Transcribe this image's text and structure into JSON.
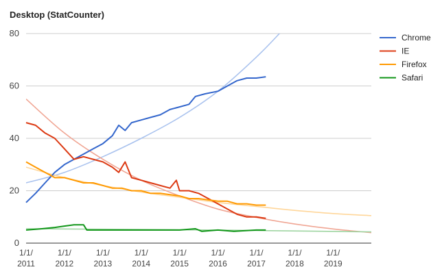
{
  "chart_data": {
    "type": "line",
    "title": "Desktop (StatCounter)",
    "xlabel": "",
    "ylabel": "",
    "ylim": [
      0,
      80
    ],
    "xlim": [
      "2011-01-01",
      "2019-12-31"
    ],
    "yticks": [
      "0",
      "20",
      "40",
      "60",
      "80"
    ],
    "xticks": [
      {
        "date": "2011-01-01",
        "line1": "1/1/",
        "line2": "2011"
      },
      {
        "date": "2012-01-01",
        "line1": "1/1/",
        "line2": "2012"
      },
      {
        "date": "2013-01-01",
        "line1": "1/1/",
        "line2": "2013"
      },
      {
        "date": "2014-01-01",
        "line1": "1/1/",
        "line2": "2014"
      },
      {
        "date": "2015-01-01",
        "line1": "1/1/",
        "line2": "2015"
      },
      {
        "date": "2016-01-01",
        "line1": "1/1/",
        "line2": "2016"
      },
      {
        "date": "2017-01-01",
        "line1": "1/1/",
        "line2": "2017"
      },
      {
        "date": "2018-01-01",
        "line1": "1/1/",
        "line2": "2018"
      },
      {
        "date": "2019-01-01",
        "line1": "1/1/",
        "line2": "2019"
      }
    ],
    "grid": "horizontal",
    "legend_position": "right",
    "series": [
      {
        "name": "Chrome",
        "color": "#3366cc",
        "trend_color": "#a9c2ee",
        "points": [
          [
            "2011-01-01",
            15.5
          ],
          [
            "2011-04-01",
            19
          ],
          [
            "2011-07-01",
            23
          ],
          [
            "2011-10-01",
            27
          ],
          [
            "2012-01-01",
            30
          ],
          [
            "2012-04-01",
            32
          ],
          [
            "2012-07-01",
            34
          ],
          [
            "2012-10-01",
            36
          ],
          [
            "2013-01-01",
            38
          ],
          [
            "2013-04-01",
            41
          ],
          [
            "2013-06-01",
            45
          ],
          [
            "2013-08-01",
            43
          ],
          [
            "2013-10-01",
            46
          ],
          [
            "2014-01-01",
            47
          ],
          [
            "2014-04-01",
            48
          ],
          [
            "2014-07-01",
            49
          ],
          [
            "2014-10-01",
            51
          ],
          [
            "2015-01-01",
            52
          ],
          [
            "2015-04-01",
            53
          ],
          [
            "2015-06-01",
            56
          ],
          [
            "2015-09-01",
            57
          ],
          [
            "2016-01-01",
            58
          ],
          [
            "2016-04-01",
            60
          ],
          [
            "2016-07-01",
            62
          ],
          [
            "2016-10-01",
            63
          ],
          [
            "2017-01-01",
            63
          ],
          [
            "2017-04-01",
            63.5
          ]
        ],
        "trend": [
          [
            "2011-01-01",
            23
          ],
          [
            "2012-01-01",
            27
          ],
          [
            "2013-01-01",
            33
          ],
          [
            "2014-01-01",
            40
          ],
          [
            "2015-01-01",
            48
          ],
          [
            "2016-01-01",
            58
          ],
          [
            "2017-01-01",
            71
          ],
          [
            "2017-09-01",
            81
          ]
        ]
      },
      {
        "name": "IE",
        "color": "#dc3912",
        "trend_color": "#f0a593",
        "points": [
          [
            "2011-01-01",
            46
          ],
          [
            "2011-04-01",
            45
          ],
          [
            "2011-07-01",
            42
          ],
          [
            "2011-10-01",
            40
          ],
          [
            "2012-01-01",
            36
          ],
          [
            "2012-04-01",
            32
          ],
          [
            "2012-07-01",
            33
          ],
          [
            "2012-10-01",
            32
          ],
          [
            "2013-01-01",
            31
          ],
          [
            "2013-04-01",
            29
          ],
          [
            "2013-06-01",
            27
          ],
          [
            "2013-08-01",
            31
          ],
          [
            "2013-10-01",
            25
          ],
          [
            "2014-01-01",
            24
          ],
          [
            "2014-04-01",
            23
          ],
          [
            "2014-07-01",
            22
          ],
          [
            "2014-10-01",
            21
          ],
          [
            "2014-12-01",
            24
          ],
          [
            "2015-01-01",
            20
          ],
          [
            "2015-04-01",
            20
          ],
          [
            "2015-07-01",
            19
          ],
          [
            "2016-01-01",
            15
          ],
          [
            "2016-04-01",
            13
          ],
          [
            "2016-07-01",
            11
          ],
          [
            "2016-10-01",
            10
          ],
          [
            "2017-01-01",
            10
          ],
          [
            "2017-04-01",
            9.5
          ]
        ],
        "trend": [
          [
            "2011-01-01",
            55
          ],
          [
            "2012-01-01",
            42
          ],
          [
            "2013-01-01",
            32
          ],
          [
            "2014-01-01",
            24
          ],
          [
            "2015-01-01",
            18
          ],
          [
            "2016-01-01",
            13
          ],
          [
            "2017-01-01",
            9.8
          ],
          [
            "2018-01-01",
            7.3
          ],
          [
            "2019-01-01",
            5.4
          ],
          [
            "2019-12-31",
            4
          ]
        ]
      },
      {
        "name": "Firefox",
        "color": "#ff9900",
        "trend_color": "#ffd699",
        "points": [
          [
            "2011-01-01",
            31
          ],
          [
            "2011-04-01",
            29
          ],
          [
            "2011-07-01",
            27
          ],
          [
            "2011-10-01",
            25
          ],
          [
            "2012-01-01",
            25
          ],
          [
            "2012-04-01",
            24
          ],
          [
            "2012-07-01",
            23
          ],
          [
            "2012-10-01",
            23
          ],
          [
            "2013-01-01",
            22
          ],
          [
            "2013-04-01",
            21
          ],
          [
            "2013-07-01",
            21
          ],
          [
            "2013-10-01",
            20
          ],
          [
            "2014-01-01",
            20
          ],
          [
            "2014-04-01",
            19
          ],
          [
            "2014-07-01",
            19
          ],
          [
            "2014-10-01",
            18.5
          ],
          [
            "2015-01-01",
            18
          ],
          [
            "2015-04-01",
            17
          ],
          [
            "2015-07-01",
            17
          ],
          [
            "2016-01-01",
            16
          ],
          [
            "2016-04-01",
            16
          ],
          [
            "2016-07-01",
            15
          ],
          [
            "2016-10-01",
            15
          ],
          [
            "2017-01-01",
            14.5
          ],
          [
            "2017-04-01",
            14.5
          ]
        ],
        "trend": [
          [
            "2011-01-01",
            29
          ],
          [
            "2012-01-01",
            25
          ],
          [
            "2013-01-01",
            22
          ],
          [
            "2014-01-01",
            19.5
          ],
          [
            "2015-01-01",
            17.5
          ],
          [
            "2016-01-01",
            15.5
          ],
          [
            "2017-01-01",
            14
          ],
          [
            "2018-01-01",
            12.5
          ],
          [
            "2019-01-01",
            11.3
          ],
          [
            "2019-12-31",
            10.5
          ]
        ]
      },
      {
        "name": "Safari",
        "color": "#109618",
        "trend_color": "#9fd5a2",
        "points": [
          [
            "2011-01-01",
            5
          ],
          [
            "2011-06-01",
            5.5
          ],
          [
            "2011-10-01",
            6
          ],
          [
            "2012-01-01",
            6.5
          ],
          [
            "2012-04-01",
            7
          ],
          [
            "2012-07-01",
            7
          ],
          [
            "2012-08-01",
            5
          ],
          [
            "2013-01-01",
            5
          ],
          [
            "2013-06-01",
            5
          ],
          [
            "2014-01-01",
            5
          ],
          [
            "2014-06-01",
            5
          ],
          [
            "2015-01-01",
            5
          ],
          [
            "2015-06-01",
            5.5
          ],
          [
            "2015-08-01",
            4.5
          ],
          [
            "2016-01-01",
            5
          ],
          [
            "2016-06-01",
            4.5
          ],
          [
            "2017-01-01",
            5
          ],
          [
            "2017-04-01",
            5
          ]
        ],
        "trend": [
          [
            "2011-01-01",
            5.5
          ],
          [
            "2013-01-01",
            5.3
          ],
          [
            "2015-01-01",
            5.1
          ],
          [
            "2017-01-01",
            4.8
          ],
          [
            "2019-12-31",
            4.3
          ]
        ]
      }
    ]
  }
}
